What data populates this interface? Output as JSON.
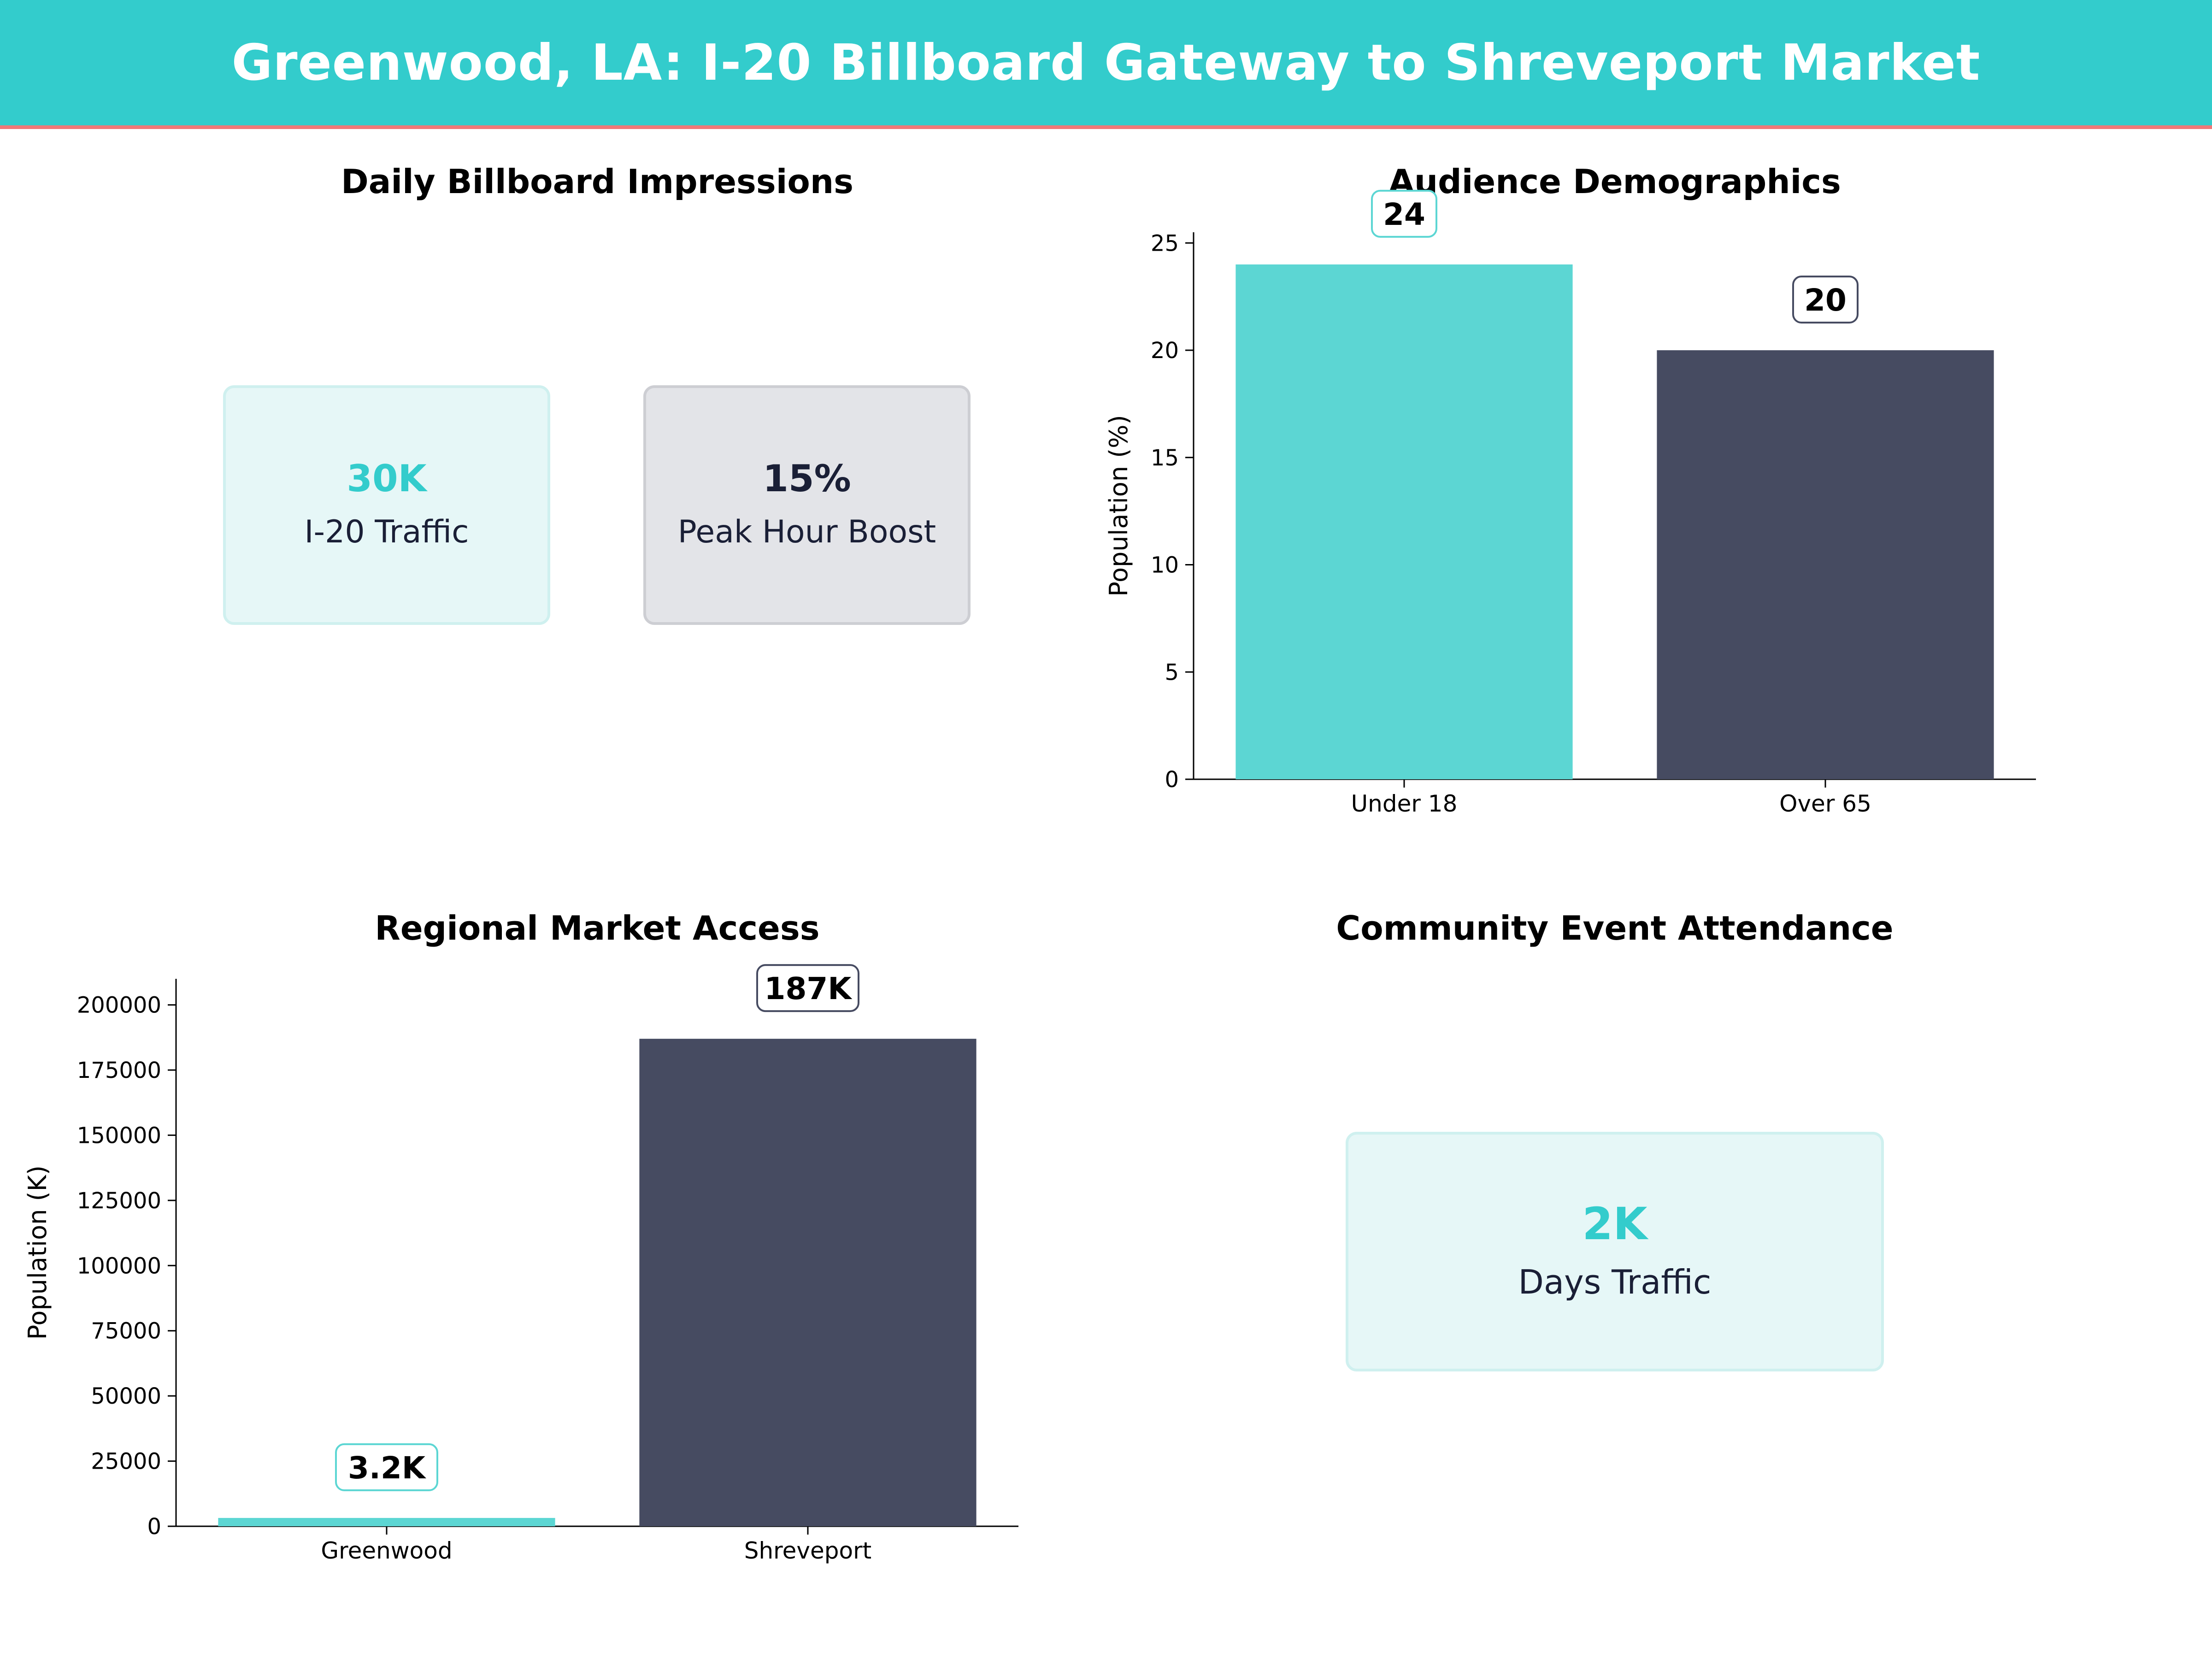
{
  "header": {
    "title": "Greenwood, LA: I-20 Billboard Gateway to Shreveport Market"
  },
  "colors": {
    "teal": "#5CD6D3",
    "navy": "#464B61",
    "accent": "#33CCCC",
    "header_border": "#F07878"
  },
  "impressions": {
    "title": "Daily Billboard Impressions",
    "cards": [
      {
        "value": "30K",
        "label": "I-20 Traffic"
      },
      {
        "value": "15%",
        "label": "Peak Hour Boost"
      }
    ]
  },
  "events": {
    "title": "Community Event Attendance",
    "card": {
      "value": "2K",
      "label": "Days Traffic"
    }
  },
  "chart_data": [
    {
      "type": "bar",
      "title": "Audience Demographics",
      "categories": [
        "Under 18",
        "Over 65"
      ],
      "values": [
        24,
        20
      ],
      "data_labels": [
        "24",
        "20"
      ],
      "xlabel": "",
      "ylabel": "Population (%)",
      "ylim": [
        0,
        25.5
      ],
      "yticks": [
        0,
        5,
        10,
        15,
        20,
        25
      ],
      "grid": false
    },
    {
      "type": "bar",
      "title": "Regional Market Access",
      "categories": [
        "Greenwood",
        "Shreveport"
      ],
      "values": [
        3200,
        187000
      ],
      "data_labels": [
        "3.2K",
        "187K"
      ],
      "xlabel": "",
      "ylabel": "Population (K)",
      "ylim": [
        0,
        210000
      ],
      "yticks": [
        0,
        25000,
        50000,
        75000,
        100000,
        125000,
        150000,
        175000,
        200000
      ],
      "grid": false
    }
  ]
}
